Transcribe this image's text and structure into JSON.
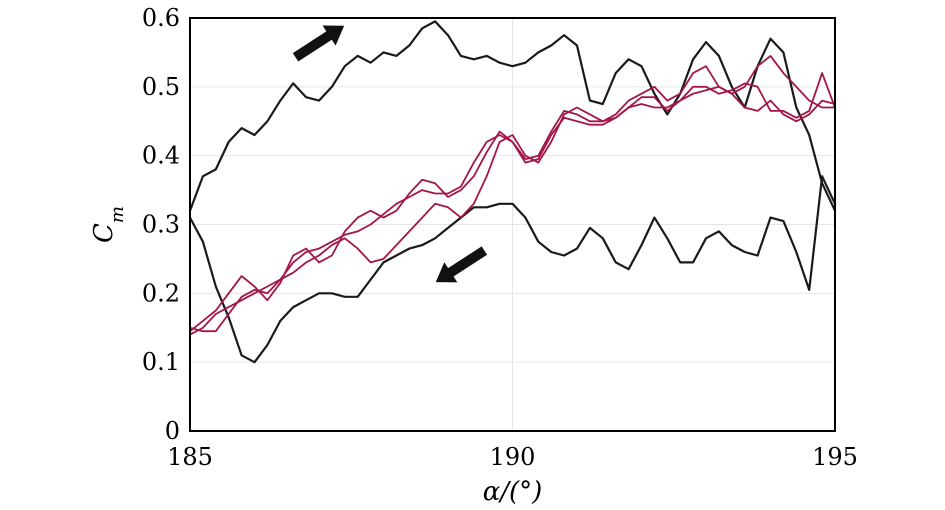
{
  "chart_data": {
    "type": "line",
    "title": "",
    "xlabel": "α/(°)",
    "ylabel": "C",
    "ylabel_subscript": "m",
    "xlim": [
      185,
      195
    ],
    "ylim": [
      0,
      0.6
    ],
    "xticks": [
      185,
      190,
      195
    ],
    "yticks": [
      "0",
      "0.1",
      "0.2",
      "0.3",
      "0.4",
      "0.5",
      "0.6"
    ],
    "grid": true,
    "colors": {
      "black": "#1a1a1a",
      "crimson": "#a3164a",
      "grid": "#e6e6e6"
    },
    "series": [
      {
        "color": "#1a1a1a",
        "x": [
          185.0,
          185.2,
          185.4,
          185.6,
          185.8,
          186.0,
          186.2,
          186.4,
          186.6,
          186.8,
          187.0,
          187.2,
          187.4,
          187.6,
          187.8,
          188.0,
          188.2,
          188.4,
          188.6,
          188.8,
          189.0,
          189.2,
          189.4,
          189.6,
          189.8,
          190.0,
          190.2,
          190.4,
          190.6,
          190.8,
          191.0,
          191.2,
          191.4,
          191.6,
          191.8,
          192.0,
          192.2,
          192.4,
          192.6,
          192.8,
          193.0,
          193.2,
          193.4,
          193.6,
          193.8,
          194.0,
          194.2,
          194.4,
          194.6,
          194.8,
          195.0
        ],
        "y": [
          0.32,
          0.37,
          0.38,
          0.42,
          0.44,
          0.43,
          0.45,
          0.48,
          0.505,
          0.485,
          0.48,
          0.5,
          0.53,
          0.545,
          0.535,
          0.55,
          0.545,
          0.56,
          0.585,
          0.595,
          0.575,
          0.545,
          0.54,
          0.545,
          0.535,
          0.53,
          0.535,
          0.55,
          0.56,
          0.575,
          0.56,
          0.48,
          0.475,
          0.52,
          0.54,
          0.53,
          0.49,
          0.46,
          0.49,
          0.54,
          0.565,
          0.545,
          0.5,
          0.47,
          0.53,
          0.57,
          0.55,
          0.47,
          0.43,
          0.36,
          0.32
        ]
      },
      {
        "color": "#1a1a1a",
        "x": [
          195.0,
          194.8,
          194.6,
          194.4,
          194.2,
          194.0,
          193.8,
          193.6,
          193.4,
          193.2,
          193.0,
          192.8,
          192.6,
          192.4,
          192.2,
          192.0,
          191.8,
          191.6,
          191.4,
          191.2,
          191.0,
          190.8,
          190.6,
          190.4,
          190.2,
          190.0,
          189.8,
          189.6,
          189.4,
          189.2,
          189.0,
          188.8,
          188.6,
          188.4,
          188.2,
          188.0,
          187.8,
          187.6,
          187.4,
          187.2,
          187.0,
          186.8,
          186.6,
          186.4,
          186.2,
          186.0,
          185.8,
          185.6,
          185.4,
          185.2,
          185.0
        ],
        "y": [
          0.33,
          0.37,
          0.205,
          0.26,
          0.305,
          0.31,
          0.255,
          0.26,
          0.27,
          0.29,
          0.28,
          0.245,
          0.245,
          0.28,
          0.31,
          0.27,
          0.235,
          0.245,
          0.28,
          0.295,
          0.265,
          0.255,
          0.26,
          0.275,
          0.31,
          0.33,
          0.33,
          0.325,
          0.325,
          0.31,
          0.295,
          0.28,
          0.27,
          0.265,
          0.255,
          0.245,
          0.22,
          0.195,
          0.195,
          0.2,
          0.2,
          0.19,
          0.18,
          0.16,
          0.125,
          0.1,
          0.11,
          0.165,
          0.21,
          0.275,
          0.31
        ]
      },
      {
        "color": "#a3164a",
        "x": [
          185.0,
          185.2,
          185.4,
          185.6,
          185.8,
          186.0,
          186.2,
          186.4,
          186.6,
          186.8,
          187.0,
          187.2,
          187.4,
          187.6,
          187.8,
          188.0,
          188.2,
          188.4,
          188.6,
          188.8,
          189.0,
          189.2,
          189.4,
          189.6,
          189.8,
          190.0,
          190.2,
          190.4,
          190.6,
          190.8,
          191.0,
          191.2,
          191.4,
          191.6,
          191.8,
          192.0,
          192.2,
          192.4,
          192.6,
          192.8,
          193.0,
          193.2,
          193.4,
          193.6,
          193.8,
          194.0,
          194.2,
          194.4,
          194.6,
          194.8,
          195.0
        ],
        "y": [
          0.14,
          0.15,
          0.17,
          0.18,
          0.19,
          0.2,
          0.21,
          0.22,
          0.23,
          0.245,
          0.255,
          0.27,
          0.28,
          0.265,
          0.245,
          0.25,
          0.27,
          0.29,
          0.31,
          0.33,
          0.325,
          0.31,
          0.33,
          0.37,
          0.42,
          0.43,
          0.4,
          0.39,
          0.42,
          0.46,
          0.47,
          0.46,
          0.45,
          0.46,
          0.48,
          0.49,
          0.5,
          0.48,
          0.49,
          0.52,
          0.53,
          0.5,
          0.49,
          0.5,
          0.53,
          0.545,
          0.52,
          0.5,
          0.48,
          0.47,
          0.47
        ]
      },
      {
        "color": "#a3164a",
        "x": [
          185.0,
          185.2,
          185.4,
          185.6,
          185.8,
          186.0,
          186.2,
          186.4,
          186.6,
          186.8,
          187.0,
          187.2,
          187.4,
          187.6,
          187.8,
          188.0,
          188.2,
          188.4,
          188.6,
          188.8,
          189.0,
          189.2,
          189.4,
          189.6,
          189.8,
          190.0,
          190.2,
          190.4,
          190.6,
          190.8,
          191.0,
          191.2,
          191.4,
          191.6,
          191.8,
          192.0,
          192.2,
          192.4,
          192.6,
          192.8,
          193.0,
          193.2,
          193.4,
          193.6,
          193.8,
          194.0,
          194.2,
          194.4,
          194.6,
          194.8,
          195.0
        ],
        "y": [
          0.145,
          0.16,
          0.175,
          0.2,
          0.225,
          0.21,
          0.19,
          0.215,
          0.255,
          0.265,
          0.245,
          0.255,
          0.29,
          0.31,
          0.32,
          0.31,
          0.32,
          0.345,
          0.365,
          0.36,
          0.34,
          0.35,
          0.37,
          0.405,
          0.435,
          0.42,
          0.395,
          0.4,
          0.435,
          0.465,
          0.46,
          0.45,
          0.45,
          0.455,
          0.47,
          0.475,
          0.47,
          0.47,
          0.48,
          0.49,
          0.495,
          0.5,
          0.49,
          0.47,
          0.465,
          0.48,
          0.46,
          0.45,
          0.46,
          0.48,
          0.475
        ]
      },
      {
        "color": "#a3164a",
        "x": [
          185.0,
          185.2,
          185.4,
          185.6,
          185.8,
          186.0,
          186.2,
          186.4,
          186.6,
          186.8,
          187.0,
          187.2,
          187.4,
          187.6,
          187.8,
          188.0,
          188.2,
          188.4,
          188.6,
          188.8,
          189.0,
          189.2,
          189.4,
          189.6,
          189.8,
          190.0,
          190.2,
          190.4,
          190.6,
          190.8,
          191.0,
          191.2,
          191.4,
          191.6,
          191.8,
          192.0,
          192.2,
          192.4,
          192.6,
          192.8,
          193.0,
          193.2,
          193.4,
          193.6,
          193.8,
          194.0,
          194.2,
          194.4,
          194.6,
          194.8,
          195.0
        ],
        "y": [
          0.15,
          0.145,
          0.145,
          0.17,
          0.195,
          0.205,
          0.2,
          0.22,
          0.245,
          0.26,
          0.265,
          0.275,
          0.285,
          0.29,
          0.3,
          0.315,
          0.33,
          0.34,
          0.35,
          0.345,
          0.345,
          0.355,
          0.39,
          0.42,
          0.43,
          0.42,
          0.39,
          0.395,
          0.43,
          0.455,
          0.45,
          0.445,
          0.445,
          0.455,
          0.47,
          0.485,
          0.485,
          0.465,
          0.48,
          0.5,
          0.5,
          0.49,
          0.495,
          0.505,
          0.5,
          0.465,
          0.465,
          0.455,
          0.465,
          0.52,
          0.47
        ]
      }
    ],
    "annotations": [
      {
        "type": "arrow",
        "direction": "up-right",
        "x": 187.0,
        "y": 0.565
      },
      {
        "type": "arrow",
        "direction": "down-left",
        "x": 189.2,
        "y": 0.24
      }
    ]
  }
}
